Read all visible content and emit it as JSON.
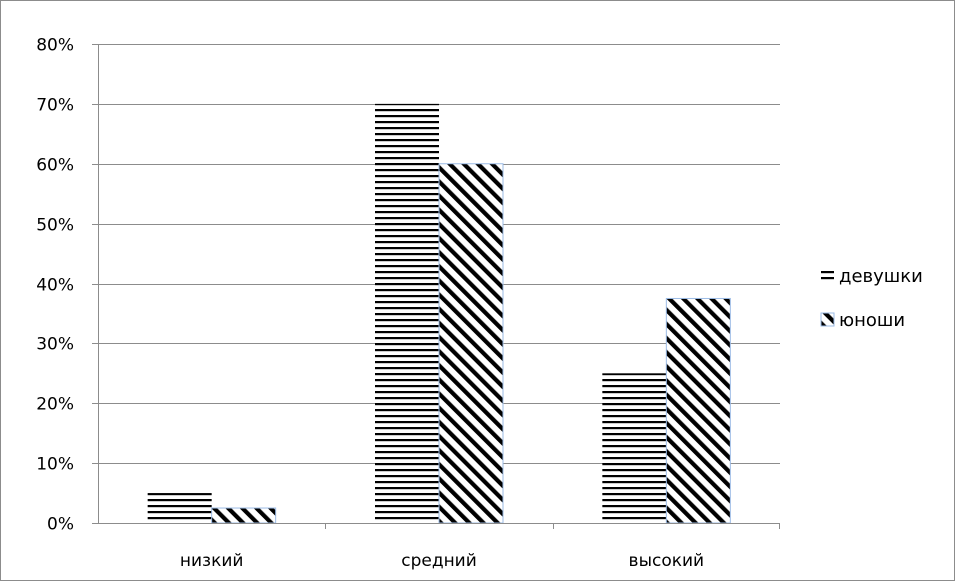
{
  "chart_data": {
    "type": "bar",
    "title": "",
    "xlabel": "",
    "ylabel": "",
    "categories": [
      "низкий",
      "средний",
      "высокий"
    ],
    "series": [
      {
        "name": "девушки",
        "values": [
          0.05,
          0.7,
          0.25
        ],
        "pattern": "horizontal-lines",
        "color": "#000000"
      },
      {
        "name": "юноши",
        "values": [
          0.025,
          0.6,
          0.375
        ],
        "pattern": "diagonal-lines",
        "color": "#000000",
        "border_color": "#9bbbe6"
      }
    ],
    "ylim": [
      0,
      0.8
    ],
    "y_ticks": [
      "0%",
      "10%",
      "20%",
      "30%",
      "40%",
      "50%",
      "60%",
      "70%",
      "80%"
    ],
    "grid": true,
    "legend_position": "right"
  }
}
